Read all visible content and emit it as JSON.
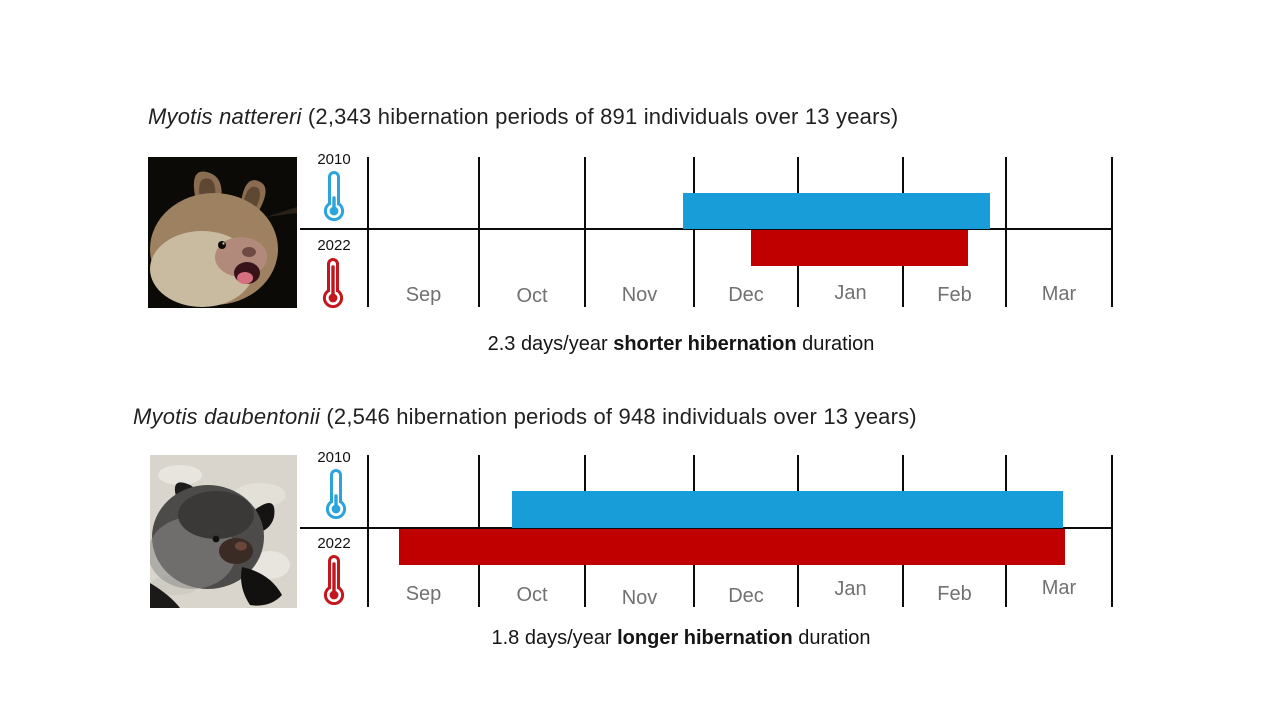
{
  "figure": {
    "background": "#ffffff",
    "colors": {
      "bar_blue": "#189DD9",
      "bar_red": "#C00000",
      "thermo_blue": "#2BA4DC",
      "thermo_red": "#C4161E",
      "axis_black": "#0b0b0b",
      "month_gray": "#717171"
    },
    "charts": [
      {
        "species": "Myotis nattereri",
        "title_rest": " (2,343 hibernation periods of 891 individuals over 13 years)",
        "year_top_label": "2010",
        "year_bottom_label": "2022",
        "bat_photo": "Natterer's bat face on black background",
        "caption": {
          "prefix": "2.3 days/year ",
          "bold": "shorter hibernation",
          "suffix": " duration"
        }
      },
      {
        "species": "Myotis daubentonii",
        "title_rest": " (2,546 hibernation periods of 948 individuals over 13 years)",
        "year_top_label": "2010",
        "year_bottom_label": "2022",
        "bat_photo": "Daubenton's bat on pale rock background",
        "caption": {
          "prefix": "1.8 days/year ",
          "bold": "longer hibernation",
          "suffix": " duration"
        }
      }
    ]
  },
  "chart_data": [
    {
      "type": "timeline_bar",
      "title": "Myotis nattereri (2,343 hibernation periods of 891 individuals over 13 years)",
      "x_axis": {
        "unit": "months",
        "tick_labels": [
          "Sep",
          "Oct",
          "Nov",
          "Dec",
          "Jan",
          "Feb",
          "Mar"
        ],
        "range": [
          "Sep 1",
          "Apr 1"
        ],
        "grid": true
      },
      "series": [
        {
          "name": "2010",
          "color": "#189DD9",
          "row": "above-axis",
          "start_month": 2.9,
          "end_month": 5.85,
          "approx_span": "late Nov to late Feb"
        },
        {
          "name": "2022",
          "color": "#C00000",
          "row": "below-axis",
          "start_month": 3.55,
          "end_month": 5.63,
          "approx_span": "mid Dec to mid-late Feb"
        }
      ],
      "annotation": "2.3 days/year shorter hibernation duration",
      "legend": [
        {
          "label": "2010",
          "icon": "blue-cold-thermometer"
        },
        {
          "label": "2022",
          "icon": "red-warm-thermometer"
        }
      ]
    },
    {
      "type": "timeline_bar",
      "title": "Myotis daubentonii (2,546 hibernation periods of 948 individuals over 13 years)",
      "x_axis": {
        "unit": "months",
        "tick_labels": [
          "Sep",
          "Oct",
          "Nov",
          "Dec",
          "Jan",
          "Feb",
          "Mar"
        ],
        "range": [
          "Sep 1",
          "Apr 1"
        ],
        "grid": true
      },
      "series": [
        {
          "name": "2010",
          "color": "#189DD9",
          "row": "above-axis",
          "start_month": 1.31,
          "end_month": 6.54,
          "approx_span": "mid Oct to mid Mar"
        },
        {
          "name": "2022",
          "color": "#C00000",
          "row": "below-axis",
          "start_month": 0.28,
          "end_month": 6.56,
          "approx_span": "early Sep to mid Mar"
        }
      ],
      "annotation": "1.8 days/year longer hibernation duration",
      "legend": [
        {
          "label": "2010",
          "icon": "blue-cold-thermometer"
        },
        {
          "label": "2022",
          "icon": "red-warm-thermometer"
        }
      ]
    }
  ]
}
